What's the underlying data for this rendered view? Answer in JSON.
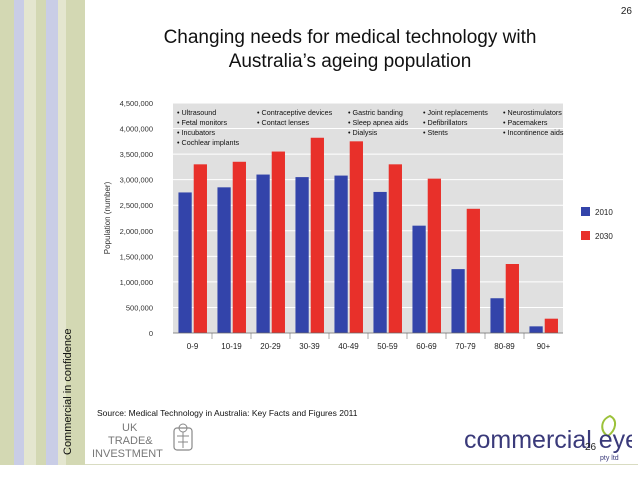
{
  "slide": {
    "page_number": "26",
    "title_line1": "Changing needs for medical technology with",
    "title_line2": "Australia’s ageing population",
    "side_label": "Commercial in confidence",
    "source": "Source: Medical Technology in Australia: Key Facts and Figures 2011",
    "logo_left": {
      "line1": "UK",
      "line2": "TRADE&",
      "line3": "INVESTMENT"
    },
    "logo_right": {
      "main": "commercial eyes",
      "sub": "pty ltd"
    }
  },
  "colors": {
    "series_2010": "#3344aa",
    "series_2030": "#e8302a",
    "plot_bg": "#e0e0e0",
    "stripe_green": "#d3d8b3",
    "stripe_blue": "#c9cde6"
  },
  "chart_data": {
    "type": "bar",
    "categories": [
      "0-9",
      "10-19",
      "20-29",
      "30-39",
      "40-49",
      "50-59",
      "60-69",
      "70-79",
      "80-89",
      "90+"
    ],
    "series": [
      {
        "name": "2010",
        "values": [
          2750000,
          2850000,
          3100000,
          3050000,
          3080000,
          2760000,
          2100000,
          1250000,
          680000,
          130000
        ]
      },
      {
        "name": "2030",
        "values": [
          3300000,
          3350000,
          3550000,
          3820000,
          3750000,
          3300000,
          3020000,
          2430000,
          1350000,
          280000
        ]
      }
    ],
    "ylabel": "Population (number)",
    "ylim": [
      0,
      4500000
    ],
    "yticks": [
      "0",
      "500,000",
      "1,000,000",
      "1,500,000",
      "2,000,000",
      "2,500,000",
      "3,000,000",
      "3,500,000",
      "4,000,000",
      "4,500,000"
    ],
    "legend_position": "right",
    "annotations": [
      [
        "Ultrasound",
        "Fetal monitors",
        "Incubators",
        "Cochlear implants"
      ],
      [
        "Contraceptive devices",
        "Contact lenses"
      ],
      [
        "Gastric banding",
        "Sleep apnea aids",
        "Dialysis"
      ],
      [
        "Joint replacements",
        "Defibrillators",
        "Stents"
      ],
      [
        "Neurostimulators",
        "Pacemakers",
        "Incontinence aids"
      ]
    ]
  }
}
